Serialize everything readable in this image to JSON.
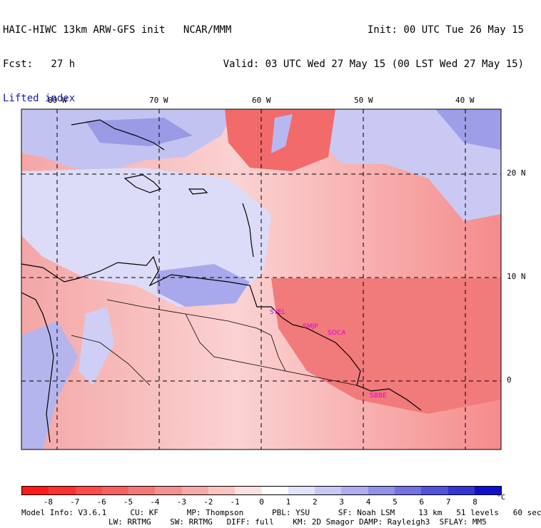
{
  "header": {
    "left_line1": "HAIC-HIWC 13km ARW-GFS init   NCAR/MMM",
    "left_line2": "Fcst:   27 h",
    "field": "Lifted index",
    "right_line1": "Init: 00 UTC Tue 26 May 15",
    "right_line2": "Valid: 03 UTC Wed 27 May 15 (00 LST Wed 27 May 15)"
  },
  "map": {
    "lon_labels": [
      "80 W",
      "70 W",
      "60 W",
      "50 W",
      "40 W"
    ],
    "lat_labels": [
      "20 N",
      "10 N",
      "0"
    ],
    "cities": [
      "SYEL",
      "SMJP",
      "SOCA",
      "SBBE"
    ]
  },
  "colorbar": {
    "ticks": [
      "-8",
      "-7",
      "-6",
      "-5",
      "-4",
      "-3",
      "-2",
      "-1",
      "0",
      "1",
      "2",
      "3",
      "4",
      "5",
      "6",
      "7",
      "8"
    ],
    "unit": "°C",
    "colors": [
      "#ff1a1a",
      "#ff3030",
      "#ff4a4a",
      "#f86060",
      "#f47878",
      "#f59090",
      "#f8aaaa",
      "#fbc4c4",
      "#fde0e0",
      "#ffffff",
      "#e2e2fb",
      "#c8c8f6",
      "#aeaef0",
      "#9090ea",
      "#7272e4",
      "#5252dc",
      "#3434d4",
      "#1010cc"
    ]
  },
  "footer": {
    "line1": "Model Info: V3.6.1     CU: KF      MP: Thompson      PBL: YSU      SF: Noah LSM     13 km   51 levels   60 sec",
    "line2": "LW: RRTMG    SW: RRTMG   DIFF: full    KM: 2D Smagor DAMP: Rayleigh3  SFLAY: MM5"
  }
}
